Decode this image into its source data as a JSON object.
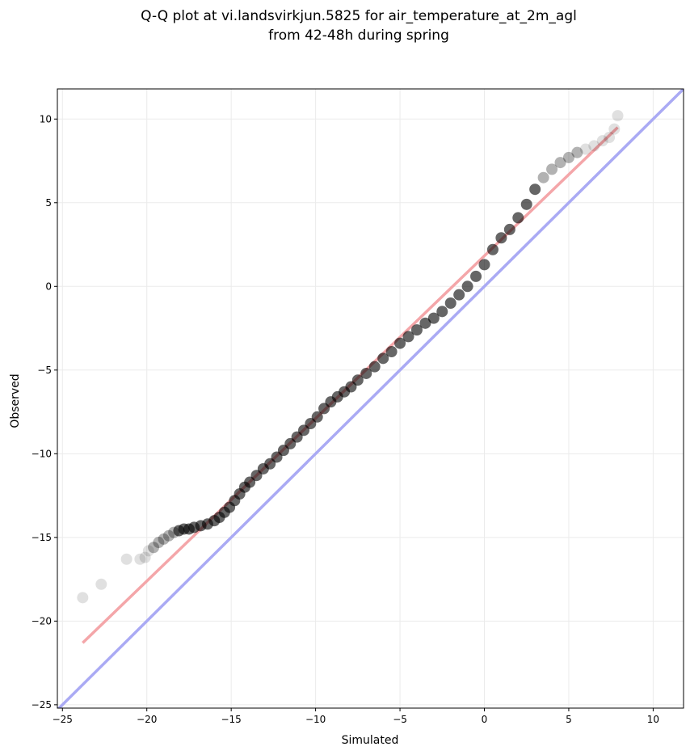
{
  "chart_data": {
    "type": "scatter",
    "title_line1": "Q-Q plot at vi.landsvirkjun.5825 for air_temperature_at_2m_agl",
    "title_line2": "from 42-48h during spring",
    "xlabel": "Simulated",
    "ylabel": "Observed",
    "xlim": [
      -25.3,
      11.8
    ],
    "ylim": [
      -25.2,
      11.8
    ],
    "xticks": [
      -25,
      -20,
      -15,
      -10,
      -5,
      0,
      5,
      10
    ],
    "yticks": [
      -25,
      -20,
      -15,
      -10,
      -5,
      0,
      5,
      10
    ],
    "xtick_labels": [
      "−25",
      "−20",
      "−15",
      "−10",
      "−5",
      "0",
      "5",
      "10"
    ],
    "ytick_labels": [
      "−25",
      "−20",
      "−15",
      "−10",
      "−5",
      "0",
      "5",
      "10"
    ],
    "grid": true,
    "colors": {
      "points": "#000000",
      "fit_line": "#f4a6a9",
      "identity_line": "#aaaaf4",
      "grid": "#ebebeb"
    },
    "identity_line": {
      "x": [
        -25.3,
        11.8
      ],
      "y": [
        -25.3,
        11.8
      ]
    },
    "fit_line": {
      "x": [
        -23.8,
        7.9
      ],
      "y": [
        -21.3,
        9.5
      ]
    },
    "quantiles": {
      "x": [
        -23.8,
        -22.7,
        -21.2,
        -20.4,
        -20.1,
        -19.9,
        -19.6,
        -19.3,
        -19.0,
        -18.7,
        -18.4,
        -18.1,
        -17.8,
        -17.5,
        -17.2,
        -16.8,
        -16.4,
        -16.0,
        -15.7,
        -15.4,
        -15.1,
        -14.8,
        -14.5,
        -14.2,
        -13.9,
        -13.5,
        -13.1,
        -12.7,
        -12.3,
        -11.9,
        -11.5,
        -11.1,
        -10.7,
        -10.3,
        -9.9,
        -9.5,
        -9.1,
        -8.7,
        -8.3,
        -7.9,
        -7.5,
        -7.0,
        -6.5,
        -6.0,
        -5.5,
        -5.0,
        -4.5,
        -4.0,
        -3.5,
        -3.0,
        -2.5,
        -2.0,
        -1.5,
        -1.0,
        -0.5,
        0.0,
        0.5,
        1.0,
        1.5,
        2.0,
        2.5,
        3.0,
        3.5,
        4.0,
        4.5,
        5.0,
        5.5,
        6.0,
        6.5,
        7.0,
        7.4,
        7.7,
        7.9
      ],
      "y": [
        -18.6,
        -17.8,
        -16.3,
        -16.3,
        -16.2,
        -15.8,
        -15.6,
        -15.3,
        -15.1,
        -14.9,
        -14.7,
        -14.6,
        -14.5,
        -14.5,
        -14.4,
        -14.3,
        -14.2,
        -14.0,
        -13.8,
        -13.5,
        -13.2,
        -12.8,
        -12.4,
        -12.0,
        -11.7,
        -11.3,
        -10.9,
        -10.6,
        -10.2,
        -9.8,
        -9.4,
        -9.0,
        -8.6,
        -8.2,
        -7.8,
        -7.3,
        -6.9,
        -6.6,
        -6.3,
        -6.0,
        -5.6,
        -5.2,
        -4.8,
        -4.3,
        -3.9,
        -3.4,
        -3.0,
        -2.6,
        -2.2,
        -1.9,
        -1.5,
        -1.0,
        -0.5,
        0.0,
        0.6,
        1.3,
        2.2,
        2.9,
        3.4,
        4.1,
        4.9,
        5.8,
        6.5,
        7.0,
        7.4,
        7.7,
        8.0,
        8.2,
        8.4,
        8.7,
        8.9,
        9.4,
        10.2
      ]
    }
  }
}
